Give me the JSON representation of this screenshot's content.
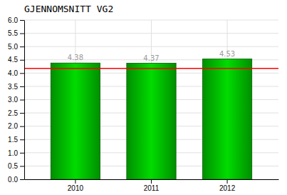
{
  "chart_data": {
    "type": "bar",
    "title": "GJENNOMSNITT VG2",
    "categories": [
      "2010",
      "2011",
      "2012"
    ],
    "values": [
      4.38,
      4.37,
      4.53
    ],
    "color": "#00dc00",
    "reference_line": {
      "value": 4.18,
      "color": "#ff0000"
    },
    "ylim": [
      0,
      6
    ],
    "yticks": [
      {
        "value": 0,
        "label": "0.0"
      },
      0.5,
      {
        "value": 1,
        "label": "1.0"
      },
      1.5,
      {
        "value": 2,
        "label": "2.0"
      },
      2.5,
      {
        "value": 3,
        "label": "3.0"
      },
      3.5,
      {
        "value": 4,
        "label": "4.0"
      },
      4.5,
      {
        "value": 5,
        "label": "5.0"
      },
      5.5,
      {
        "value": 6,
        "label": "6.0"
      }
    ],
    "grid": true,
    "data_labels": true
  }
}
